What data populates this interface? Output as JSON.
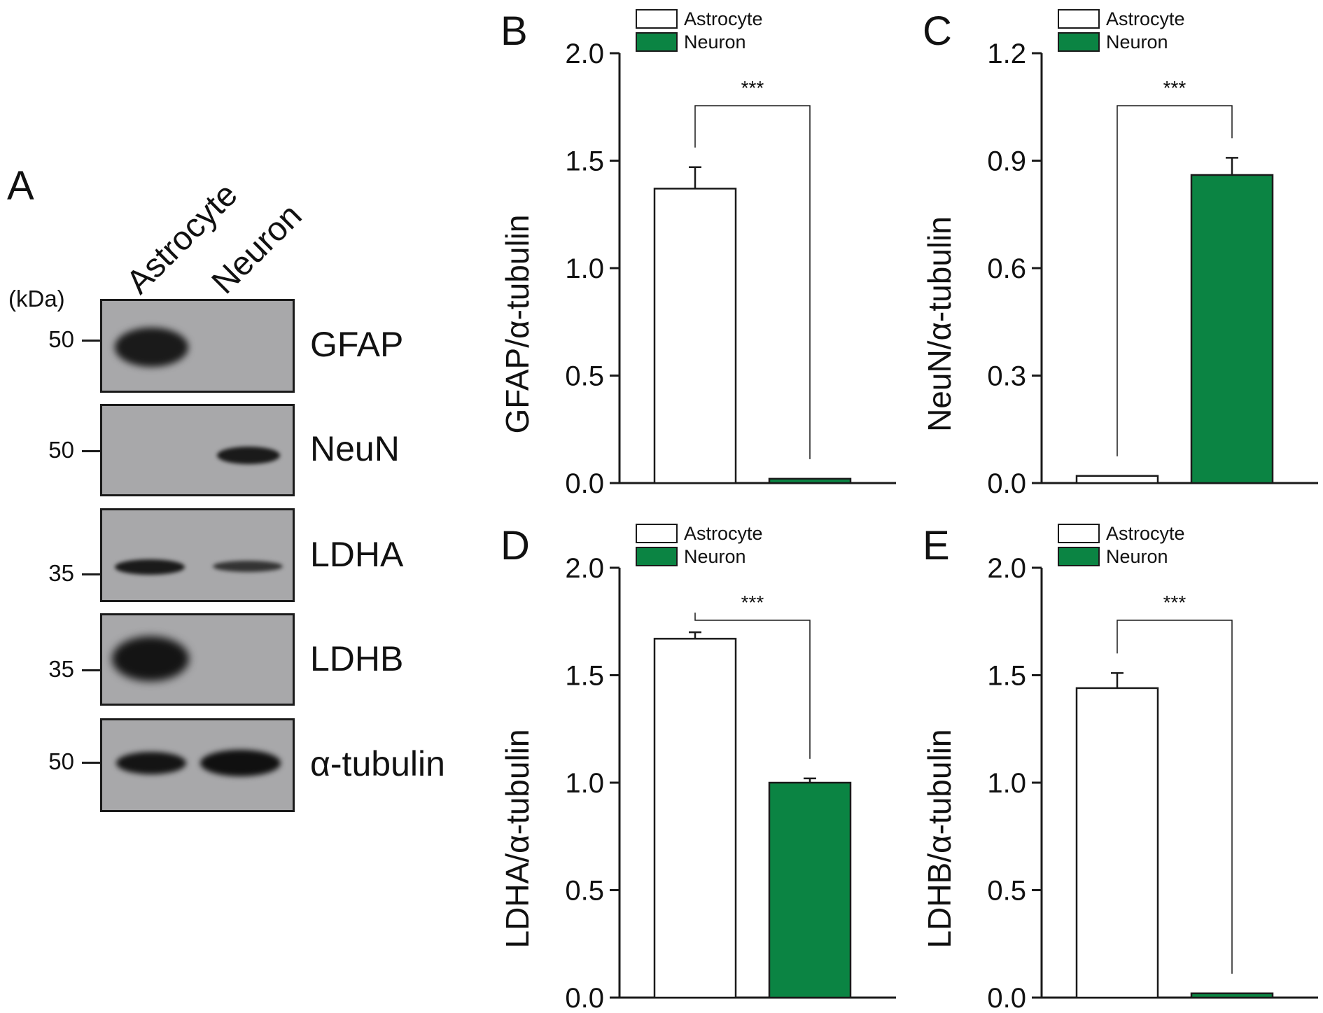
{
  "panel_a": {
    "letter": "A",
    "lanes": [
      "Astrocyte",
      "Neuron"
    ],
    "kda_label": "(kDa)",
    "blots": [
      {
        "protein": "GFAP",
        "marker": "50"
      },
      {
        "protein": "NeuN",
        "marker": "50"
      },
      {
        "protein": "LDHA",
        "marker": "35"
      },
      {
        "protein": "LDHB",
        "marker": "35"
      },
      {
        "protein": "α-tubulin",
        "marker": "50"
      }
    ],
    "colors": {
      "membrane": "#a8a8aa",
      "band": "#161616"
    }
  },
  "legend": [
    "Astrocyte",
    "Neuron"
  ],
  "colors": {
    "astrocyte": "#ffffff",
    "neuron": "#0b8443",
    "axis": "#1a1a1a"
  },
  "chart_data": [
    {
      "panel": "B",
      "type": "bar",
      "categories": [
        "Astrocyte",
        "Neuron"
      ],
      "values": [
        1.37,
        0.02
      ],
      "errors": [
        0.1,
        0.0
      ],
      "ylabel": "GFAP/α-tubulin",
      "ylim": [
        0,
        2.0
      ],
      "yticks": [
        "0.0",
        "0.5",
        "1.0",
        "1.5",
        "2.0"
      ],
      "significance": "***"
    },
    {
      "panel": "C",
      "type": "bar",
      "categories": [
        "Astrocyte",
        "Neuron"
      ],
      "values": [
        0.02,
        0.86
      ],
      "errors": [
        0.0,
        0.048
      ],
      "ylabel": "NeuN/α-tubulin",
      "ylim": [
        0,
        1.2
      ],
      "yticks": [
        "0.0",
        "0.3",
        "0.6",
        "0.9",
        "1.2"
      ],
      "significance": "***"
    },
    {
      "panel": "D",
      "type": "bar",
      "categories": [
        "Astrocyte",
        "Neuron"
      ],
      "values": [
        1.67,
        1.0
      ],
      "errors": [
        0.03,
        0.02
      ],
      "ylabel": "LDHA/α-tubulin",
      "ylim": [
        0,
        2.0
      ],
      "yticks": [
        "0.0",
        "0.5",
        "1.0",
        "1.5",
        "2.0"
      ],
      "significance": "***"
    },
    {
      "panel": "E",
      "type": "bar",
      "categories": [
        "Astrocyte",
        "Neuron"
      ],
      "values": [
        1.44,
        0.02
      ],
      "errors": [
        0.07,
        0.0
      ],
      "ylabel": "LDHB/α-tubulin",
      "ylim": [
        0,
        2.0
      ],
      "yticks": [
        "0.0",
        "0.5",
        "1.0",
        "1.5",
        "2.0"
      ],
      "significance": "***"
    }
  ]
}
